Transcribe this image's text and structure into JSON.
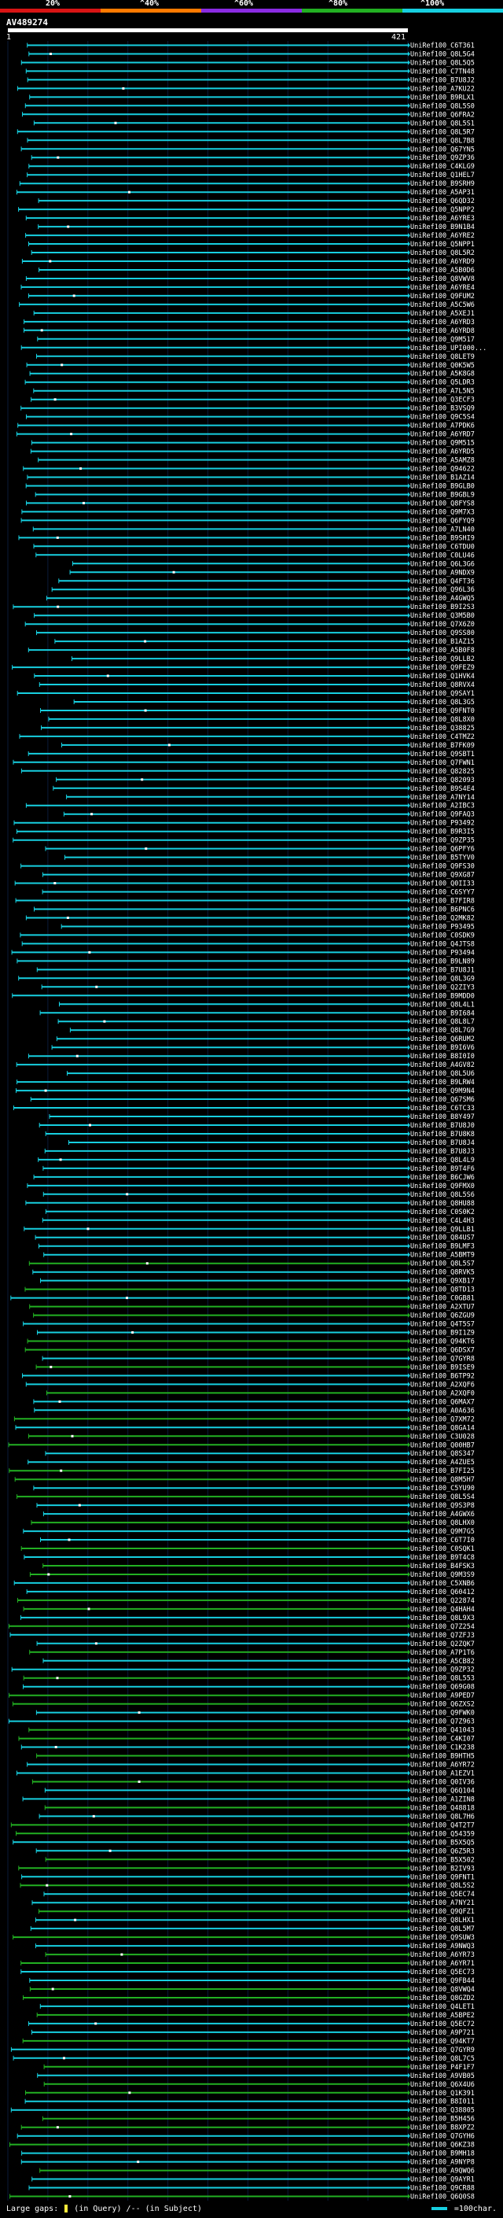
{
  "legend": {
    "labels": [
      "20%",
      "^40%",
      "^60%",
      "^80%",
      "^100%"
    ],
    "colors": [
      "#d81414",
      "#ff7a00",
      "#8a2be2",
      "#22b022",
      "#17cfe0"
    ]
  },
  "query": {
    "title": "AV489274",
    "start": "1",
    "end": "421"
  },
  "footer": {
    "gaps_label": "Large gaps:",
    "gaps_query": "(in Query)",
    "gaps_subject": "/-- (in Subject)",
    "scale_label": "=100char."
  },
  "hits": [
    "UniRef100_C6T361",
    "UniRef100_Q8L5G4",
    "UniRef100_Q8L5Q5",
    "UniRef100_C7TN48",
    "UniRef100_B7U8J2",
    "UniRef100_A7KU22",
    "UniRef100_B9RLX1",
    "UniRef100_Q8L5S0",
    "UniRef100_Q6FRA2",
    "UniRef100_Q8L5S1",
    "UniRef100_Q8L5R7",
    "UniRef100_Q8L7B8",
    "UniRef100_Q67YN5",
    "UniRef100_Q9ZP36",
    "UniRef100_C4KLG9",
    "UniRef100_Q1HEL7",
    "UniRef100_B9SRH9",
    "UniRef100_A5AP31",
    "UniRef100_Q6QD32",
    "UniRef100_Q5NPP2",
    "UniRef100_A6YRE3",
    "UniRef100_B9N1B4",
    "UniRef100_A6YRE2",
    "UniRef100_Q5NPP1",
    "UniRef100_Q8L5R2",
    "UniRef100_A6YRD9",
    "UniRef100_A5B0D6",
    "UniRef100_Q8VWV8",
    "UniRef100_A6YRE4",
    "UniRef100_Q9FUM2",
    "UniRef100_A5C5W6",
    "UniRef100_A5XEJ1",
    "UniRef100_A6YRD3",
    "UniRef100_A6YRD8",
    "UniRef100_Q9M517",
    "UniRef100_UPI000...",
    "UniRef100_Q8LET9",
    "UniRef100_Q0K5W5",
    "UniRef100_A5K8G8",
    "UniRef100_Q5LDR3",
    "UniRef100_A7L5N5",
    "UniRef100_Q3ECF3",
    "UniRef100_B3VSQ9",
    "UniRef100_Q9C5S4",
    "UniRef100_A7PDK6",
    "UniRef100_A6YRD7",
    "UniRef100_Q9M515",
    "UniRef100_A6YRD5",
    "UniRef100_A5AMZ8",
    "UniRef100_Q94622",
    "UniRef100_B1AZ14",
    "UniRef100_B9GLB0",
    "UniRef100_B9GBL9",
    "UniRef100_Q8FYS8",
    "UniRef100_Q9M7X3",
    "UniRef100_Q6FYQ9",
    "UniRef100_A7LN40",
    "UniRef100_B9SHI9",
    "UniRef100_C6TDU0",
    "UniRef100_C0LU46",
    "UniRef100_Q6L3G6",
    "UniRef100_A9NDX9",
    "UniRef100_Q4FT36",
    "UniRef100_Q96L36",
    "UniRef100_A4GWQ5",
    "UniRef100_B9I2S3",
    "UniRef100_Q3M5B0",
    "UniRef100_Q7X6Z0",
    "UniRef100_Q9SS80",
    "UniRef100_B1AZ15",
    "UniRef100_A5B0F8",
    "UniRef100_Q9LLB2",
    "UniRef100_Q9FEZ9",
    "UniRef100_Q1HVK4",
    "UniRef100_Q8RVX4",
    "UniRef100_Q9SAY1",
    "UniRef100_Q8L3G5",
    "UniRef100_Q9FNT0",
    "UniRef100_Q8L8X0",
    "UniRef100_Q38825",
    "UniRef100_C4TMZ2",
    "UniRef100_B7FK09",
    "UniRef100_Q9SBT1",
    "UniRef100_Q7FWN1",
    "UniRef100_Q82825",
    "UniRef100_Q82093",
    "UniRef100_B9S4E4",
    "UniRef100_A7NY14",
    "UniRef100_A2IBC3",
    "UniRef100_Q9FAQ3",
    "UniRef100_P93492",
    "UniRef100_B9R3I5",
    "UniRef100_Q9ZP35",
    "UniRef100_Q6PFY6",
    "UniRef100_B5TYV0",
    "UniRef100_Q9FS30",
    "UniRef100_Q9XG87",
    "UniRef100_Q0II33",
    "UniRef100_C6SYY7",
    "UniRef100_B7FIR8",
    "UniRef100_B6PNC6",
    "UniRef100_Q2MK82",
    "UniRef100_P93495",
    "UniRef100_C0SDK9",
    "UniRef100_Q4JTS8",
    "UniRef100_P93494",
    "UniRef100_B9LN89",
    "UniRef100_B7U8J1",
    "UniRef100_Q8L3G9",
    "UniRef100_Q2ZIY3",
    "UniRef100_B9MDD0",
    "UniRef100_Q8L4L1",
    "UniRef100_B9I684",
    "UniRef100_Q8L8L7",
    "UniRef100_Q8L7G9",
    "UniRef100_Q6RUM2",
    "UniRef100_B9I6V6",
    "UniRef100_B8I0I0",
    "UniRef100_A4GV82",
    "UniRef100_Q8L5U6",
    "UniRef100_B9LRW4",
    "UniRef100_Q9M9N4",
    "UniRef100_Q67SM6",
    "UniRef100_C6TC33",
    "UniRef100_B8Y497",
    "UniRef100_B7U8J0",
    "UniRef100_B7U8K8",
    "UniRef100_B7U8J4",
    "UniRef100_B7U8J3",
    "UniRef100_Q8L4L9",
    "UniRef100_B9T4F6",
    "UniRef100_B6CJW6",
    "UniRef100_Q9FMX0",
    "UniRef100_Q8L5S6",
    "UniRef100_Q8HU88",
    "UniRef100_C0S0K2",
    "UniRef100_C4L4H3",
    "UniRef100_Q9LLB1",
    "UniRef100_Q84US7",
    "UniRef100_B9LMF3",
    "UniRef100_A5BMT9",
    "UniRef100_Q8L5S7",
    "UniRef100_Q8RVK5",
    "UniRef100_Q9XB17",
    "UniRef100_Q8TD13",
    "UniRef100_C0GB81",
    "UniRef100_A2XTU7",
    "UniRef100_Q6ZGU9",
    "UniRef100_Q4T5S7",
    "UniRef100_B9I1Z9",
    "UniRef100_Q94KT6",
    "UniRef100_Q6DSX7",
    "UniRef100_Q7GYR8",
    "UniRef100_B9ISE9",
    "UniRef100_B6TP92",
    "UniRef100_A2XQF6",
    "UniRef100_A2XQF0",
    "UniRef100_Q6MAX7",
    "UniRef100_A0A636",
    "UniRef100_Q7XM72",
    "UniRef100_Q8GA14",
    "UniRef100_C3U028",
    "UniRef100_Q00HB7",
    "UniRef100_Q8S347",
    "UniRef100_A4ZUE5",
    "UniRef100_B7FI25",
    "UniRef100_Q8M5H7",
    "UniRef100_C5YU90",
    "UniRef100_Q8L5S4",
    "UniRef100_Q9S3P8",
    "UniRef100_A4GWX6",
    "UniRef100_Q8LHX0",
    "UniRef100_Q9M7G5",
    "UniRef100_C6T7I0",
    "UniRef100_C0SQK1",
    "UniRef100_B9T4C8",
    "UniRef100_B4FSK3",
    "UniRef100_Q9M3S9",
    "UniRef100_C5XNB6",
    "UniRef100_Q60412",
    "UniRef100_Q22874",
    "UniRef100_Q4HAH4",
    "UniRef100_Q8L9X3",
    "UniRef100_Q7Z254",
    "UniRef100_Q7ZFJ3",
    "UniRef100_Q2ZQK7",
    "UniRef100_A7P1T6",
    "UniRef100_A5CB82",
    "UniRef100_Q9ZP32",
    "UniRef100_Q8L553",
    "UniRef100_Q69G08",
    "UniRef100_A9PED7",
    "UniRef100_Q6ZXS2",
    "UniRef100_Q9FWK0",
    "UniRef100_Q7Z963",
    "UniRef100_Q41043",
    "UniRef100_C4KI07",
    "UniRef100_C1K238",
    "UniRef100_B9HTH5",
    "UniRef100_A6YR72",
    "UniRef100_A1EZV1",
    "UniRef100_Q0IV36",
    "UniRef100_Q6Q104",
    "UniRef100_A1ZIN8",
    "UniRef100_Q48818",
    "UniRef100_Q8L7H6",
    "UniRef100_Q4T2T7",
    "UniRef100_Q54359",
    "UniRef100_B5X5Q5",
    "UniRef100_Q6Z5R3",
    "UniRef100_B5X502",
    "UniRef100_B2IV93",
    "UniRef100_Q9FNT1",
    "UniRef100_Q8L5S2",
    "UniRef100_Q5EC74",
    "UniRef100_A7NY21",
    "UniRef100_Q9QFZ1",
    "UniRef100_Q8LHX1",
    "UniRef100_Q8L5M7",
    "UniRef100_Q9SUW3",
    "UniRef100_A9NWQ3",
    "UniRef100_A6YR73",
    "UniRef100_A6YR71",
    "UniRef100_Q5EC73",
    "UniRef100_Q9FB44",
    "UniRef100_Q8VWQ4",
    "UniRef100_Q8GZD2",
    "UniRef100_Q4LET1",
    "UniRef100_A5BPE2",
    "UniRef100_Q5EC72",
    "UniRef100_A9P721",
    "UniRef100_Q94KT7",
    "UniRef100_Q7GYR9",
    "UniRef100_Q8L7C5",
    "UniRef100_P4F1F7",
    "UniRef100_A9VB05",
    "UniRef100_Q6X4U6",
    "UniRef100_Q1K391",
    "UniRef100_B8I011",
    "UniRef100_Q38805",
    "UniRef100_B5H456",
    "UniRef100_B8XPZ2",
    "UniRef100_Q7GYH6",
    "UniRef100_Q6KZ38",
    "UniRef100_B9MH18",
    "UniRef100_A9NYP8",
    "UniRef100_A9QWQ6",
    "UniRef100_Q9AYR1",
    "UniRef100_Q9CR88",
    "UniRef100_Q6Q0S8"
  ]
}
